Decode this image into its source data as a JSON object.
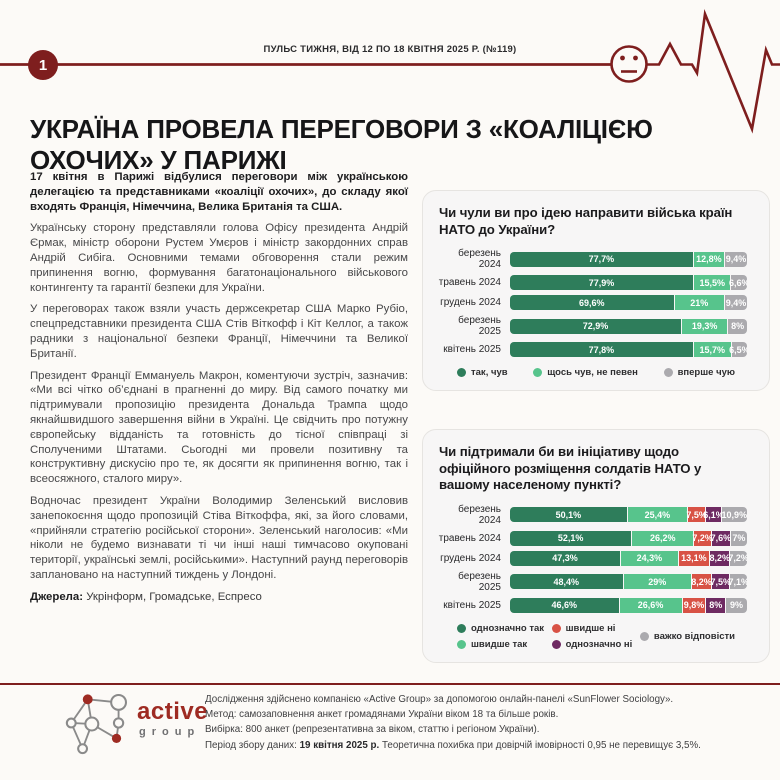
{
  "colors": {
    "accent_red": "#7E1E1E",
    "logo_red": "#9E2B23",
    "dark_green": "#2E7D5B",
    "light_green": "#57C48C",
    "gray": "#ABAAAE",
    "red": "#D85245",
    "purple": "#6E2A62"
  },
  "header": {
    "issue_badge": "1",
    "text": "ПУЛЬС ТИЖНЯ, ВІД 12 ПО 18 КВІТНЯ 2025 Р. (№119)"
  },
  "title": "УКРАЇНА ПРОВЕЛА ПЕРЕГОВОРИ З «КОАЛІЦІЄЮ ОХОЧИХ» У ПАРИЖІ",
  "article": {
    "lead": "17 квітня в Парижі відбулися переговори між українською делегацією та представниками «коаліції охочих», до складу якої входять Франція, Німеччина, Велика Британія та США.",
    "paragraphs": [
      "Українську сторону представляли голова Офісу президента Андрій Єрмак, міністр оборони Рустем Умєров і міністр закордонних справ Андрій Сибіга. Основними темами обговорення стали режим припинення вогню, формування багатонаціонального військового контингенту та гарантії безпеки для України.",
      "У переговорах також взяли участь держсекретар США Марко Рубіо, спецпредставники президента США Стів Віткофф і Кіт Келлог, а також радники з національної безпеки Франції, Німеччини та Великої Британії.",
      "Президент Франції Еммануель Макрон, коментуючи зустріч, зазначив: «Ми всі чітко об’єднані в прагненні до миру. Від самого початку ми підтримували пропозицію президента Дональда Трампа щодо якнайшвидшого завершення війни в Україні. Це свідчить про потужну європейську відданість та готовність до тісної співпраці зі Сполученими Штатами. Сьогодні ми провели позитивну та конструктивну дискусію про те, як досягти як припинення вогню, так і всеосяжного, сталого миру».",
      "Водночас президент України Володимир Зеленський висловив занепокоєння щодо пропозицій Стіва Віткоффа, які, за його словами, «прийняли стратегію російської сторони». Зеленський наголосив: «Ми ніколи не будемо визнавати ті чи інші наші тимчасово окуповані території, українські землі, російськими». Наступний раунд переговорів заплановано на наступний тиждень у Лондоні."
    ],
    "sources_label": "Джерела:",
    "sources": " Укрінформ, Громадське, Еспресо"
  },
  "chart_data": [
    {
      "type": "bar",
      "orientation": "horizontal-stacked",
      "title": "Чи чули ви про ідею направити війська країн НАТО до України?",
      "categories": [
        "березень 2024",
        "травень 2024",
        "грудень 2024",
        "березень 2025",
        "квітень 2025"
      ],
      "series": [
        {
          "name": "так, чув",
          "color": "#2E7D5B",
          "values": [
            77.7,
            77.9,
            69.6,
            72.9,
            77.8
          ],
          "labels": [
            "77,7%",
            "77,9%",
            "69,6%",
            "72,9%",
            "77,8%"
          ]
        },
        {
          "name": "щось чув, не певен",
          "color": "#57C48C",
          "values": [
            12.8,
            15.5,
            21,
            19.3,
            15.7
          ],
          "labels": [
            "12,8%",
            "15,5%",
            "21%",
            "19,3%",
            "15,7%"
          ]
        },
        {
          "name": "вперше чую",
          "color": "#ABAAAE",
          "values": [
            9.4,
            6.6,
            9.4,
            8,
            6.5
          ],
          "labels": [
            "9,4%",
            "6,6%",
            "9,4%",
            "8%",
            "6,5%"
          ]
        }
      ],
      "xlim": [
        0,
        100
      ],
      "legend_position": "bottom"
    },
    {
      "type": "bar",
      "orientation": "horizontal-stacked",
      "title": "Чи підтримали би ви ініціативу щодо офіційного розміщення солдатів НАТО у вашому населеному пункті?",
      "categories": [
        "березень 2024",
        "травень 2024",
        "грудень 2024",
        "березень 2025",
        "квітень 2025"
      ],
      "series": [
        {
          "name": "однозначно так",
          "color": "#2E7D5B",
          "values": [
            50.1,
            52.1,
            47.3,
            48.4,
            46.6
          ],
          "labels": [
            "50,1%",
            "52,1%",
            "47,3%",
            "48,4%",
            "46,6%"
          ]
        },
        {
          "name": "швидше так",
          "color": "#57C48C",
          "values": [
            25.4,
            26.2,
            24.3,
            29,
            26.6
          ],
          "labels": [
            "25,4%",
            "26,2%",
            "24,3%",
            "29%",
            "26,6%"
          ]
        },
        {
          "name": "швидше ні",
          "color": "#D85245",
          "values": [
            7.5,
            7.2,
            13.1,
            8.2,
            9.8
          ],
          "labels": [
            "7,5%",
            "7,2%",
            "13,1%",
            "8,2%",
            "9,8%"
          ]
        },
        {
          "name": "однозначно ні",
          "color": "#6E2A62",
          "values": [
            6.1,
            7.6,
            8.2,
            7.5,
            8
          ],
          "labels": [
            "6,1%",
            "7,6%",
            "8,2%",
            "7,5%",
            "8%"
          ]
        },
        {
          "name": "важко відповісти",
          "color": "#ABAAAE",
          "values": [
            10.9,
            7,
            7.2,
            7.1,
            9
          ],
          "labels": [
            "10,9%",
            "7%",
            "7,2%",
            "7,1%",
            "9%"
          ]
        }
      ],
      "xlim": [
        0,
        100
      ],
      "legend_position": "bottom"
    }
  ],
  "footer": {
    "logo_main": "active",
    "logo_sub": "group",
    "lines": [
      "Дослідження здійснено компанією «Active Group» за допомогою онлайн-панелі «SunFlower Sociology».",
      "Метод: самозаповнення анкет громадянами України віком 18 та більше років.",
      "Вибірка: 800 анкет (репрезентативна за віком, статтю і регіоном України)."
    ],
    "period_prefix": "Період збору даних: ",
    "period_bold": "19 квітня 2025 р.",
    "period_rest": " Теоретична похибка при довірчій імовірності 0,95 не перевищує 3,5%."
  }
}
